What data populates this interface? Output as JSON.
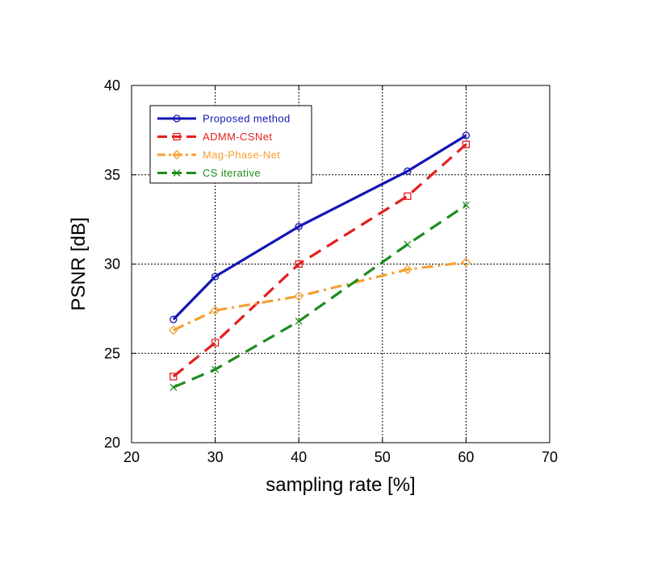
{
  "chart_data": {
    "type": "line",
    "title": "",
    "xlabel": "sampling rate [%]",
    "ylabel": "PSNR [dB]",
    "xlim": [
      20,
      70
    ],
    "ylim": [
      20,
      40
    ],
    "xticks": [
      20,
      30,
      40,
      50,
      60,
      70
    ],
    "yticks": [
      20,
      25,
      30,
      35,
      40
    ],
    "x_tick_labels": [
      "20",
      "30",
      "40",
      "50",
      "60",
      "70"
    ],
    "y_tick_labels": [
      "20",
      "25",
      "30",
      "35",
      "40"
    ],
    "grid": true,
    "legend_position": "top-left",
    "x": [
      25,
      30,
      40,
      53,
      60
    ],
    "series": [
      {
        "name": "Proposed method",
        "values": [
          26.9,
          29.3,
          32.1,
          35.2,
          37.2
        ],
        "color": "#1414b4",
        "marker": "circle",
        "style": "solid"
      },
      {
        "name": "ADMM-CSNet",
        "values": [
          23.7,
          25.6,
          30.0,
          33.8,
          36.7
        ],
        "color": "#e61e1e",
        "marker": "square",
        "style": "dashed"
      },
      {
        "name": "Mag-Phase-Net",
        "values": [
          26.3,
          27.4,
          28.2,
          29.7,
          30.1
        ],
        "color": "#f5a032",
        "marker": "diamond",
        "style": "dashdot"
      },
      {
        "name": "CS iterative",
        "values": [
          23.1,
          24.1,
          26.8,
          31.1,
          33.3
        ],
        "color": "#1e8c1e",
        "marker": "x",
        "style": "dashed"
      }
    ]
  }
}
